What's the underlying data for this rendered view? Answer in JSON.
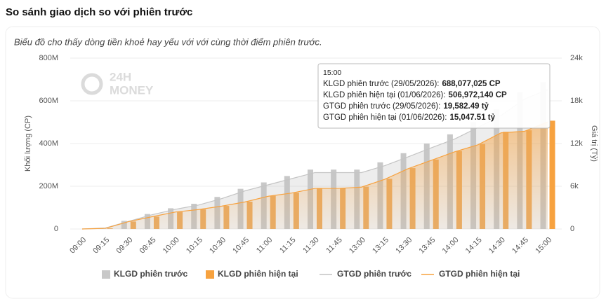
{
  "chart_data": {
    "type": "bar",
    "title": "So sánh giao dịch so với phiên trước",
    "subtitle": "Biểu đồ cho thấy dòng tiền khoẻ hay yếu với với cùng thời điểm phiên trước.",
    "brand": [
      "24H",
      "MONEY"
    ],
    "y_label": "Khối lượng (CP)",
    "y2_label": "Giá trị (Tỷ)",
    "categories": [
      "09:00",
      "09:15",
      "09:30",
      "09:45",
      "10:00",
      "10:15",
      "10:30",
      "10:45",
      "11:00",
      "11:15",
      "11:30",
      "11:45",
      "13:00",
      "13:15",
      "13:30",
      "13:45",
      "14:00",
      "14:15",
      "14:30",
      "14:45",
      "15:00"
    ],
    "ylim": [
      0,
      800000000
    ],
    "yticks": [
      0,
      {
        "value": 200000000,
        "label": "200M"
      },
      {
        "value": 400000000,
        "label": "400M"
      },
      {
        "value": 600000000,
        "label": "600M"
      },
      {
        "value": 800000000,
        "label": "800M"
      }
    ],
    "y2lim": [
      0,
      24000
    ],
    "y2ticks": [
      0,
      {
        "value": 6000,
        "label": "6k"
      },
      {
        "value": 12000,
        "label": "12k"
      },
      {
        "value": 18000,
        "label": "18k"
      },
      {
        "value": 24000,
        "label": "24k"
      }
    ],
    "grid": true,
    "legend": "bottom",
    "series": [
      {
        "name": "KLGD phiên trước",
        "type": "bar",
        "color": "#c8c8c8",
        "values": [
          0,
          5000000,
          38000000,
          70000000,
          97000000,
          118000000,
          150000000,
          188000000,
          218000000,
          248000000,
          278000000,
          278000000,
          278000000,
          312000000,
          355000000,
          400000000,
          443000000,
          500000000,
          560000000,
          640000000,
          688077025
        ]
      },
      {
        "name": "KLGD phiên hiện tại",
        "type": "bar",
        "color": "#f7a23f",
        "values": [
          0,
          3000000,
          35000000,
          58000000,
          80000000,
          92000000,
          108000000,
          128000000,
          155000000,
          170000000,
          192000000,
          192000000,
          198000000,
          235000000,
          285000000,
          325000000,
          365000000,
          398000000,
          455000000,
          462000000,
          506972140
        ]
      },
      {
        "name": "GTGD phiên trước",
        "type": "line",
        "axis": "y2",
        "color": "#c4c4c4",
        "values": [
          0,
          140,
          1080,
          2000,
          2760,
          3360,
          4270,
          5360,
          6210,
          7070,
          7920,
          7920,
          7920,
          8890,
          10120,
          11400,
          12630,
          14250,
          15960,
          18240,
          19582.49
        ]
      },
      {
        "name": "GTGD phiên hiện tại",
        "type": "line",
        "axis": "y2",
        "color": "#f7a23f",
        "values": [
          0,
          90,
          1040,
          1720,
          2380,
          2730,
          3210,
          3800,
          4600,
          5050,
          5700,
          5700,
          5880,
          6980,
          8460,
          9650,
          10840,
          11820,
          13510,
          13720,
          15047.51
        ]
      }
    ],
    "tooltip": {
      "time": "15:00",
      "rows": [
        {
          "label": "KLGD phiên trước (29/05/2026):",
          "value": "688,077,025 CP"
        },
        {
          "label": "KLGD phiên hiện tại (01/06/2026):",
          "value": "506,972,140 CP"
        },
        {
          "label": "GTGD phiên trước (29/05/2026):",
          "value": "19,582.49 tỷ"
        },
        {
          "label": "GTGD phiên hiện tại (01/06/2026):",
          "value": "15,047.51 tỷ"
        }
      ]
    }
  }
}
